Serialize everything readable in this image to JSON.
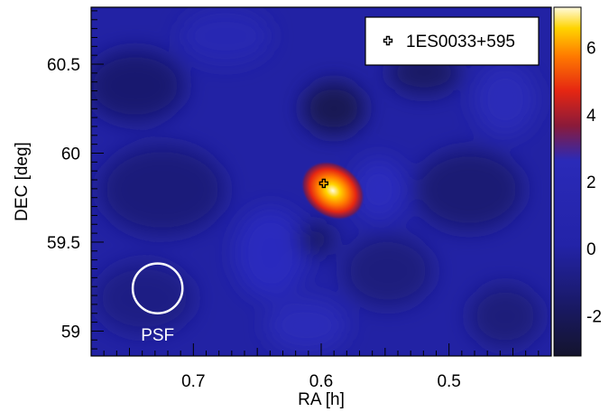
{
  "chart_data": {
    "type": "heatmap",
    "xlabel": "RA [h]",
    "ylabel": "DEC [deg]",
    "xlim": [
      0.78,
      0.42
    ],
    "ylim": [
      58.86,
      60.82
    ],
    "x_ticks": [
      {
        "value": 0.7,
        "label": "0.7"
      },
      {
        "value": 0.6,
        "label": "0.6"
      },
      {
        "value": 0.5,
        "label": "0.5"
      }
    ],
    "y_ticks": [
      {
        "value": 59.0,
        "label": "59"
      },
      {
        "value": 59.5,
        "label": "59.5"
      },
      {
        "value": 60.0,
        "label": "60"
      },
      {
        "value": 60.5,
        "label": "60.5"
      }
    ],
    "colorbar": {
      "range": [
        -3.2,
        7.2
      ],
      "ticks": [
        {
          "value": -2,
          "label": "-2"
        },
        {
          "value": 0,
          "label": "0"
        },
        {
          "value": 2,
          "label": "2"
        },
        {
          "value": 4,
          "label": "4"
        },
        {
          "value": 6,
          "label": "6"
        }
      ],
      "colors": [
        "#14142e",
        "#18185c",
        "#2323a8",
        "#2a2ab8",
        "#8a1a3a",
        "#e52612",
        "#ff7a00",
        "#ffd400",
        "#fffbe0"
      ]
    },
    "source": {
      "name": "1ES0033+595",
      "ra": 0.598,
      "dec": 59.83,
      "peak": 7.0
    },
    "psf": {
      "label": "PSF",
      "ra": 0.728,
      "dec": 59.24,
      "radius_deg": 0.14
    },
    "legend": {
      "position": "top-right",
      "entries": [
        "1ES0033+595"
      ]
    },
    "grid": false
  }
}
